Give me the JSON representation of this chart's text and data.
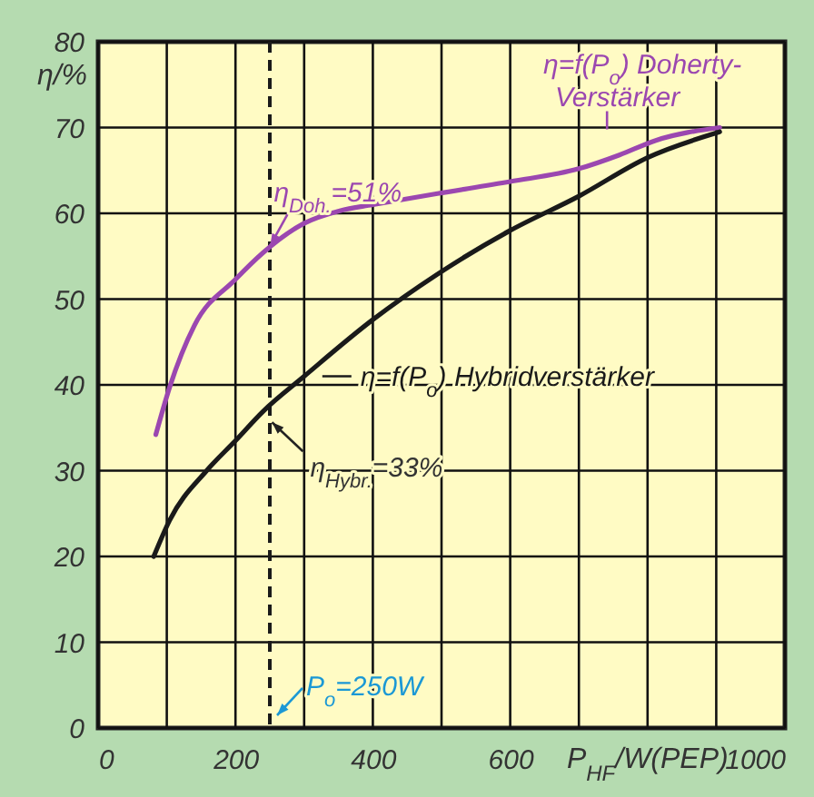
{
  "chart_data": {
    "type": "line",
    "xlabel": "P$_{HF}$/W(PEP)",
    "ylabel": "η/%",
    "xlim": [
      0,
      1000
    ],
    "ylim": [
      0,
      80
    ],
    "xticks": [
      0,
      {
        "value": 100,
        "label": null
      },
      200,
      {
        "value": 300,
        "label": null
      },
      400,
      {
        "value": 500,
        "label": null
      },
      600,
      {
        "value": 700,
        "label": null
      },
      {
        "value": 800,
        "label": null
      },
      {
        "value": 900,
        "label": null
      },
      1000
    ],
    "yticks": [
      0,
      10,
      20,
      30,
      40,
      50,
      60,
      70,
      80
    ],
    "grid": true,
    "line_style": "solid",
    "series": [
      {
        "name": "η=f(P$_{o}$) Doherty-Verstärker",
        "color": "#9b47b0",
        "x": [
          84,
          104,
          140,
          200,
          240,
          299,
          352,
          400,
          494,
          600,
          700,
          759,
          812,
          905
        ],
        "values": [
          34.2,
          39.7,
          46.9,
          52.3,
          55.4,
          58.8,
          60.3,
          61,
          62.3,
          63.7,
          65.2,
          66.8,
          68.5,
          70
        ]
      },
      {
        "name": "η=f(P$_{o}$) Hybridverstärker",
        "color": "#1a1a1a",
        "x": [
          81,
          104,
          158,
          200,
          240,
          300,
          400,
          494,
          600,
          700,
          800,
          905
        ],
        "values": [
          20,
          24.2,
          30,
          33.5,
          36.9,
          41,
          47.6,
          52.9,
          58,
          62,
          66.5,
          69.5
        ]
      }
    ],
    "ref_lines": [
      {
        "axis": "x",
        "value": 250,
        "label": "P$_{o}$=250W",
        "color": "#1a1a1a",
        "line_style": "dashed"
      }
    ],
    "annotations": [
      {
        "text": "η$_{Doh.}$=51%",
        "x": 240,
        "y": 55.4
      },
      {
        "text": "η$_{Hybr.}$=33%",
        "x": 240,
        "y": 36.9
      }
    ]
  }
}
